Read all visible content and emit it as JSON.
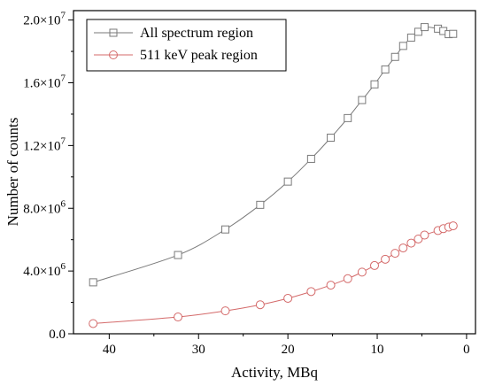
{
  "chart_data": {
    "type": "line",
    "xlabel": "Activity, MBq",
    "ylabel": "Number of counts",
    "xlim": [
      44.0,
      -1.0
    ],
    "ylim": [
      0,
      20600000
    ],
    "x_ticks": [
      40,
      30,
      20,
      10,
      0
    ],
    "x_tick_labels": [
      "40",
      "30",
      "20",
      "10",
      "0"
    ],
    "y_ticks": [
      0,
      4000000,
      8000000,
      12000000,
      16000000,
      20000000
    ],
    "y_tick_labels": [
      {
        "base": "0.0",
        "exp": ""
      },
      {
        "base": "4.0×10",
        "exp": "6"
      },
      {
        "base": "8.0×10",
        "exp": "6"
      },
      {
        "base": "1.2×10",
        "exp": "7"
      },
      {
        "base": "1.6×10",
        "exp": "7"
      },
      {
        "base": "2.0×10",
        "exp": "7"
      }
    ],
    "legend_position": "top-left",
    "series": [
      {
        "name": "All spectrum region",
        "color": "#7a7a7a",
        "marker": "square",
        "x": [
          41.8,
          32.3,
          27.0,
          23.1,
          20.0,
          17.4,
          15.2,
          13.3,
          11.7,
          10.3,
          9.1,
          8.0,
          7.1,
          6.2,
          5.4,
          4.7,
          3.2,
          2.6,
          2.0,
          1.5
        ],
        "y": [
          3280000,
          5020000,
          6650000,
          8220000,
          9700000,
          11150000,
          12500000,
          13750000,
          14900000,
          15900000,
          16850000,
          17650000,
          18350000,
          18880000,
          19250000,
          19550000,
          19450000,
          19300000,
          19100000,
          19120000
        ]
      },
      {
        "name": "511 keV peak region",
        "color": "#d46a6a",
        "marker": "circle",
        "x": [
          41.8,
          32.3,
          27.0,
          23.1,
          20.0,
          17.4,
          15.2,
          13.3,
          11.7,
          10.3,
          9.1,
          8.0,
          7.1,
          6.2,
          5.4,
          4.7,
          3.2,
          2.6,
          2.0,
          1.5
        ],
        "y": [
          650000,
          1070000,
          1460000,
          1850000,
          2260000,
          2690000,
          3100000,
          3510000,
          3930000,
          4350000,
          4750000,
          5130000,
          5470000,
          5780000,
          6040000,
          6290000,
          6580000,
          6700000,
          6800000,
          6880000
        ]
      }
    ]
  }
}
